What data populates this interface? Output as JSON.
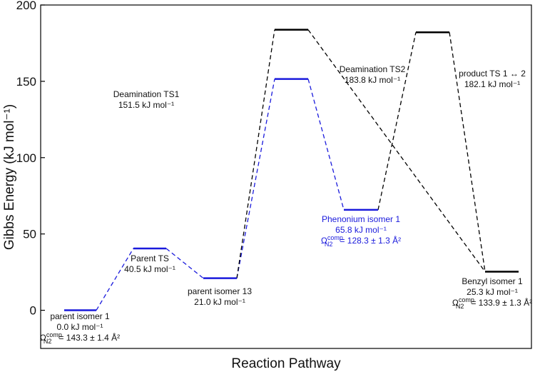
{
  "chart_data": {
    "type": "energy-diagram",
    "x_label": "Reaction Pathway",
    "y_label": "Gibbs Energy (kJ mol⁻¹)",
    "ylim": [
      -25,
      200
    ],
    "yticks": [
      0,
      50,
      100,
      150,
      200
    ],
    "levels": [
      {
        "name": "parent isomer 1",
        "value": 0.0,
        "value_label": "0.0 kJ mol⁻¹",
        "color": "#1a1adc",
        "omega": {
          "symbol": "Ω",
          "sub": "N2",
          "sup": "comp",
          "text": "= 143.3 ± 1.4 Å²"
        }
      },
      {
        "name": "Parent TS",
        "value": 40.5,
        "value_label": "40.5 kJ mol⁻¹",
        "color": "#1a1adc"
      },
      {
        "name": "parent isomer 13",
        "value": 21.0,
        "value_label": "21.0 kJ mol⁻¹",
        "color": "#1a1adc"
      },
      {
        "name": "Deamination TS1",
        "value": 151.5,
        "value_label": "151.5 kJ mol⁻¹",
        "color": "#1a1adc"
      },
      {
        "name": "Phenonium isomer 1",
        "value": 65.8,
        "value_label": "65.8 kJ mol⁻¹",
        "color": "#1a1adc",
        "omega": {
          "symbol": "Ω",
          "sub": "N2",
          "sup": "comp",
          "text": "= 128.3 ± 1.3 Å²"
        }
      },
      {
        "name": "Deamination TS2",
        "value": 183.8,
        "value_label": "183.8 kJ mol⁻¹",
        "color": "#000000"
      },
      {
        "name": "product TS 1 ↔ 2",
        "value": 182.1,
        "value_label": "182.1 kJ mol⁻¹",
        "color": "#000000"
      },
      {
        "name": "Benzyl isomer 1",
        "value": 25.3,
        "value_label": "25.3 kJ mol⁻¹",
        "color": "#000000",
        "omega": {
          "symbol": "Ω",
          "sub": "N2",
          "sup": "comp",
          "text": "= 133.9 ± 1.3 Å²"
        }
      }
    ]
  }
}
